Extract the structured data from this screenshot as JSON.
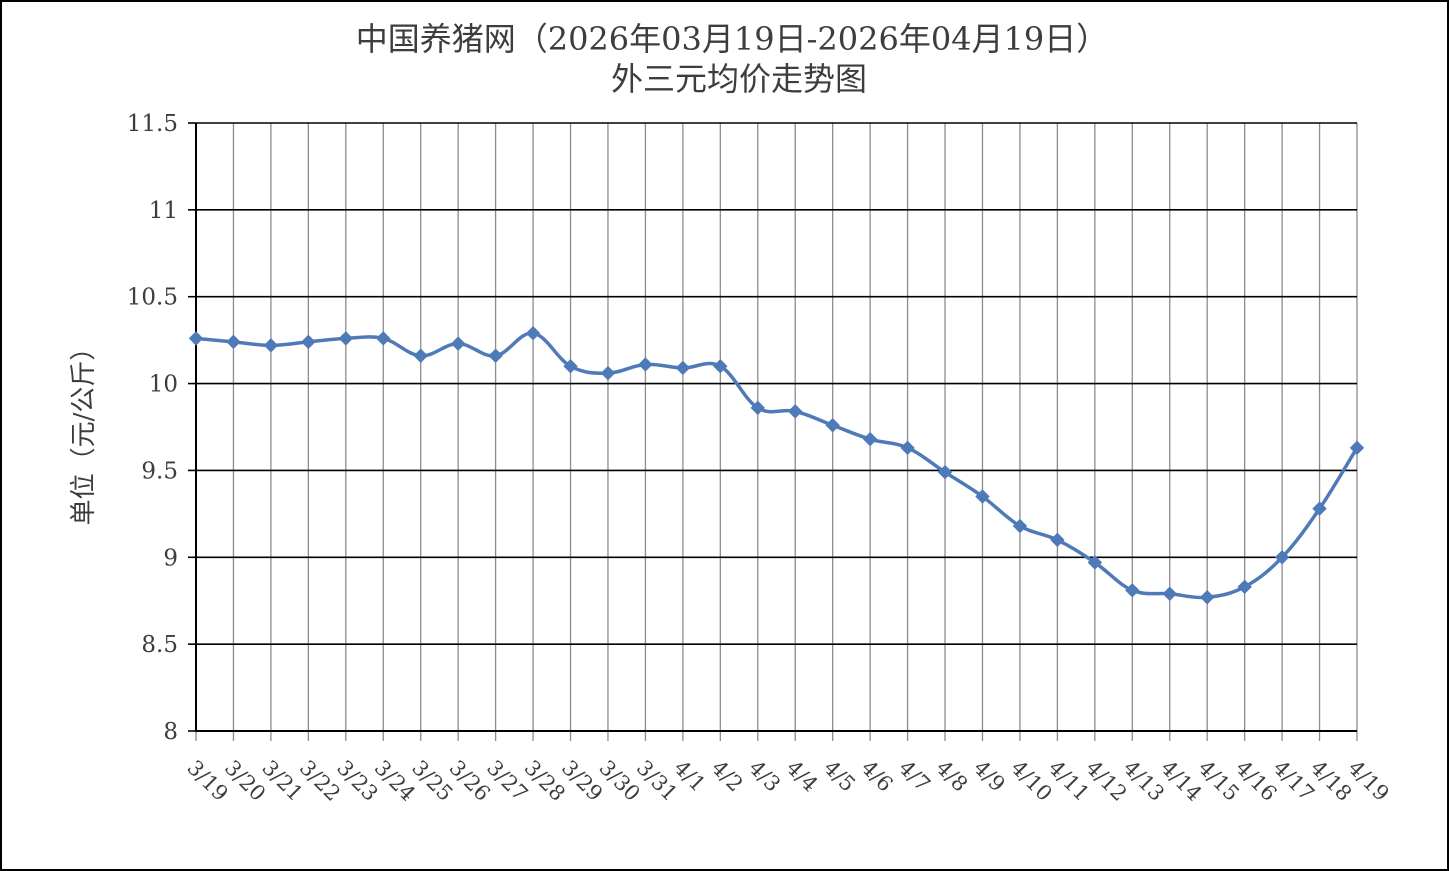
{
  "chart_data": {
    "type": "line",
    "title": "中国养猪网（2026年03月19日-2026年04月19日）",
    "subtitle": "外三元均价走势图",
    "ylabel": "单位（元/公斤）",
    "xlabel": "",
    "ylim": [
      8,
      11.5
    ],
    "yticks": [
      8,
      8.5,
      9,
      9.5,
      10,
      10.5,
      11,
      11.5
    ],
    "ytick_labels": [
      "8",
      "8.5",
      "9",
      "9.5",
      "10",
      "10.5",
      "11",
      "11.5"
    ],
    "grid": {
      "horizontal": true,
      "vertical": true
    },
    "legend": "none",
    "categories": [
      "3/19",
      "3/20",
      "3/21",
      "3/22",
      "3/23",
      "3/24",
      "3/25",
      "3/26",
      "3/27",
      "3/28",
      "3/29",
      "3/30",
      "3/31",
      "4/1",
      "4/2",
      "4/3",
      "4/4",
      "4/5",
      "4/6",
      "4/7",
      "4/8",
      "4/9",
      "4/10",
      "4/11",
      "4/12",
      "4/13",
      "4/14",
      "4/15",
      "4/16",
      "4/17",
      "4/18",
      "4/19"
    ],
    "series": [
      {
        "color": "#4f7ab8",
        "marker": "diamond",
        "smooth": true,
        "values": [
          10.26,
          10.24,
          10.22,
          10.24,
          10.26,
          10.26,
          10.16,
          10.23,
          10.16,
          10.29,
          10.1,
          10.06,
          10.11,
          10.09,
          10.1,
          9.86,
          9.84,
          9.76,
          9.68,
          9.63,
          9.49,
          9.35,
          9.18,
          9.1,
          8.97,
          8.81,
          8.79,
          8.77,
          8.83,
          9.0,
          9.28,
          9.63
        ]
      }
    ]
  }
}
